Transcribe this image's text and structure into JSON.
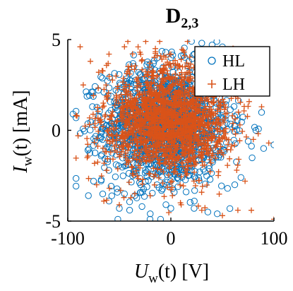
{
  "chart_data": {
    "type": "scatter",
    "title": {
      "main": "D",
      "sub": "2,3"
    },
    "xlabel": {
      "symbol": "U",
      "sub": "w",
      "rest": "(t)  [V]"
    },
    "ylabel": {
      "symbol": "I",
      "sub": "w",
      "rest": "(t)  [mA]"
    },
    "xlim": [
      -100,
      100
    ],
    "ylim": [
      -5,
      5
    ],
    "xticks": [
      -100,
      0,
      100
    ],
    "yticks": [
      -5,
      0,
      5
    ],
    "xtick_labels": [
      "-100",
      "0",
      "100"
    ],
    "ytick_labels": [
      "-5",
      "0",
      "5"
    ],
    "grid": false,
    "legend": {
      "position": "top-right",
      "entries": [
        "HL",
        "LH"
      ]
    },
    "series": [
      {
        "name": "HL",
        "marker": "o",
        "color": "#0072BD",
        "cloud": {
          "cx": -5,
          "cy": 0.3,
          "sx": 30,
          "sy": 1.6,
          "n": 1600
        },
        "points": [
          [
            -95,
            0.9
          ],
          [
            -80,
            -3.6
          ],
          [
            -75,
            -2.8
          ],
          [
            -60,
            -3.9
          ],
          [
            -50,
            -4.3
          ],
          [
            -40,
            -4.4
          ],
          [
            -35,
            -3.6
          ],
          [
            -20,
            -4.6
          ],
          [
            -10,
            -4.9
          ],
          [
            0,
            -4.3
          ],
          [
            20,
            4.9
          ],
          [
            30,
            4.8
          ],
          [
            40,
            4.7
          ],
          [
            50,
            4.6
          ],
          [
            55,
            4.4
          ],
          [
            60,
            3.8
          ],
          [
            65,
            3.0
          ],
          [
            70,
            2.2
          ],
          [
            68,
            -2.6
          ],
          [
            62,
            -3.0
          ],
          [
            55,
            -3.2
          ],
          [
            45,
            -4.6
          ],
          [
            75,
            -0.6
          ],
          [
            90,
            -1.0
          ],
          [
            100,
            -0.8
          ],
          [
            -5,
            4.3
          ],
          [
            -30,
            3.1
          ],
          [
            10,
            4.1
          ],
          [
            -45,
            -3.5
          ],
          [
            -28,
            -4.2
          ]
        ]
      },
      {
        "name": "LH",
        "marker": "+",
        "color": "#D95319",
        "cloud": {
          "cx": -3,
          "cy": 0.6,
          "sx": 30,
          "sy": 1.5,
          "n": 1800
        },
        "points": [
          [
            -88,
            4.6
          ],
          [
            -78,
            3.8
          ],
          [
            -70,
            3.2
          ],
          [
            -60,
            4.2
          ],
          [
            -45,
            4.6
          ],
          [
            -30,
            4.3
          ],
          [
            -15,
            4.5
          ],
          [
            0,
            4.2
          ],
          [
            10,
            3.9
          ],
          [
            -90,
            -0.3
          ],
          [
            -85,
            2.5
          ],
          [
            -72,
            -3.0
          ],
          [
            -65,
            -3.9
          ],
          [
            -50,
            -4.1
          ],
          [
            -35,
            -3.5
          ],
          [
            -20,
            -3.6
          ],
          [
            10,
            -4.1
          ],
          [
            30,
            -4.4
          ],
          [
            50,
            -4.7
          ],
          [
            65,
            -4.4
          ],
          [
            72,
            -2.8
          ],
          [
            80,
            -0.5
          ],
          [
            95,
            -0.7
          ],
          [
            100,
            -4.9
          ],
          [
            60,
            4.5
          ],
          [
            50,
            3.4
          ],
          [
            45,
            4.4
          ]
        ]
      }
    ]
  }
}
